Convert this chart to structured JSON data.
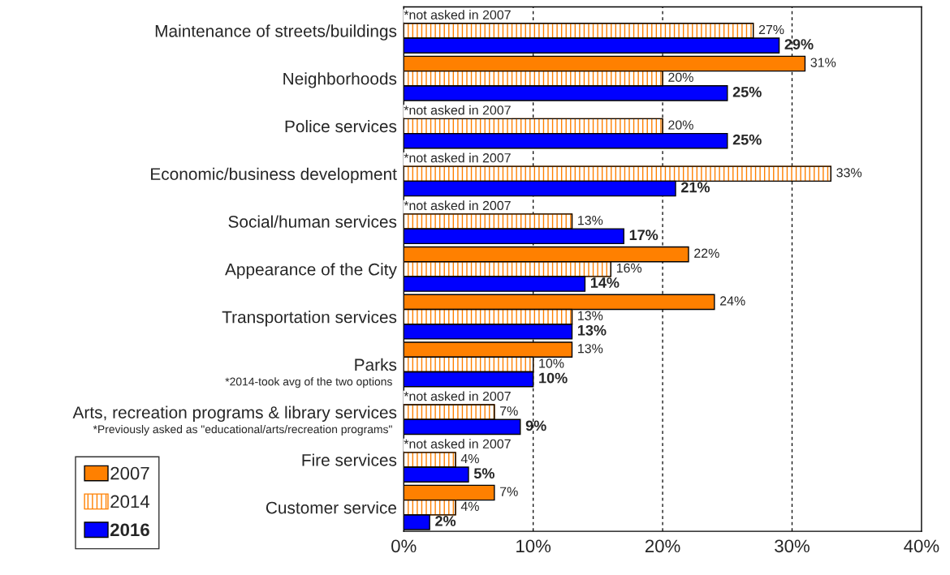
{
  "chart_data": {
    "type": "bar",
    "orientation": "horizontal",
    "categories": [
      "Maintenance of streets/buildings",
      "Neighborhoods",
      "Police services",
      "Economic/business development",
      "Social/human services",
      "Appearance of the City",
      "Transportation services",
      "Parks\n*2014-took avg of the two options",
      "Arts, recreation programs & library services\n*Previously asked as \"educational/arts/recreation programs\"",
      "Fire services",
      "Customer service"
    ],
    "series": [
      {
        "name": "2007",
        "color": "#ff8000",
        "values": [
          null,
          31,
          null,
          null,
          null,
          22,
          24,
          13,
          null,
          null,
          7
        ],
        "value_labels": [
          null,
          "31%",
          null,
          null,
          null,
          "22%",
          "24%",
          "13%",
          null,
          null,
          "7%"
        ]
      },
      {
        "name": "2014",
        "color": "#ff8000",
        "values": [
          27,
          20,
          20,
          33,
          13,
          16,
          13,
          10,
          7,
          4,
          4
        ],
        "value_labels": [
          "27%",
          "20%",
          "20%",
          "33%",
          "13%",
          "16%",
          "13%",
          "10%",
          "7%",
          "4%",
          "4%"
        ]
      },
      {
        "name": "2016",
        "color": "#0000ff",
        "values": [
          29,
          25,
          25,
          21,
          17,
          14,
          13,
          10,
          9,
          5,
          2
        ],
        "value_labels": [
          "29%",
          "25%",
          "25%",
          "21%",
          "17%",
          "14%",
          "13%",
          "10%",
          "9%",
          "5%",
          "2%"
        ]
      }
    ],
    "xlim": [
      0,
      40
    ],
    "xticks": [
      {
        "value": 0,
        "label": "0%"
      },
      {
        "value": 10,
        "label": "10%"
      },
      {
        "value": 20,
        "label": "20%"
      },
      {
        "value": 30,
        "label": "30%"
      },
      {
        "value": 40,
        "label": "40%"
      }
    ],
    "grid": "x",
    "legend": "bottom left",
    "annotations": [
      "*not asked in 2007",
      "*not asked in 2007",
      "*not asked in 2007",
      "*not asked in 2007",
      "*not asked in 2007",
      "*not asked in 2007"
    ]
  }
}
